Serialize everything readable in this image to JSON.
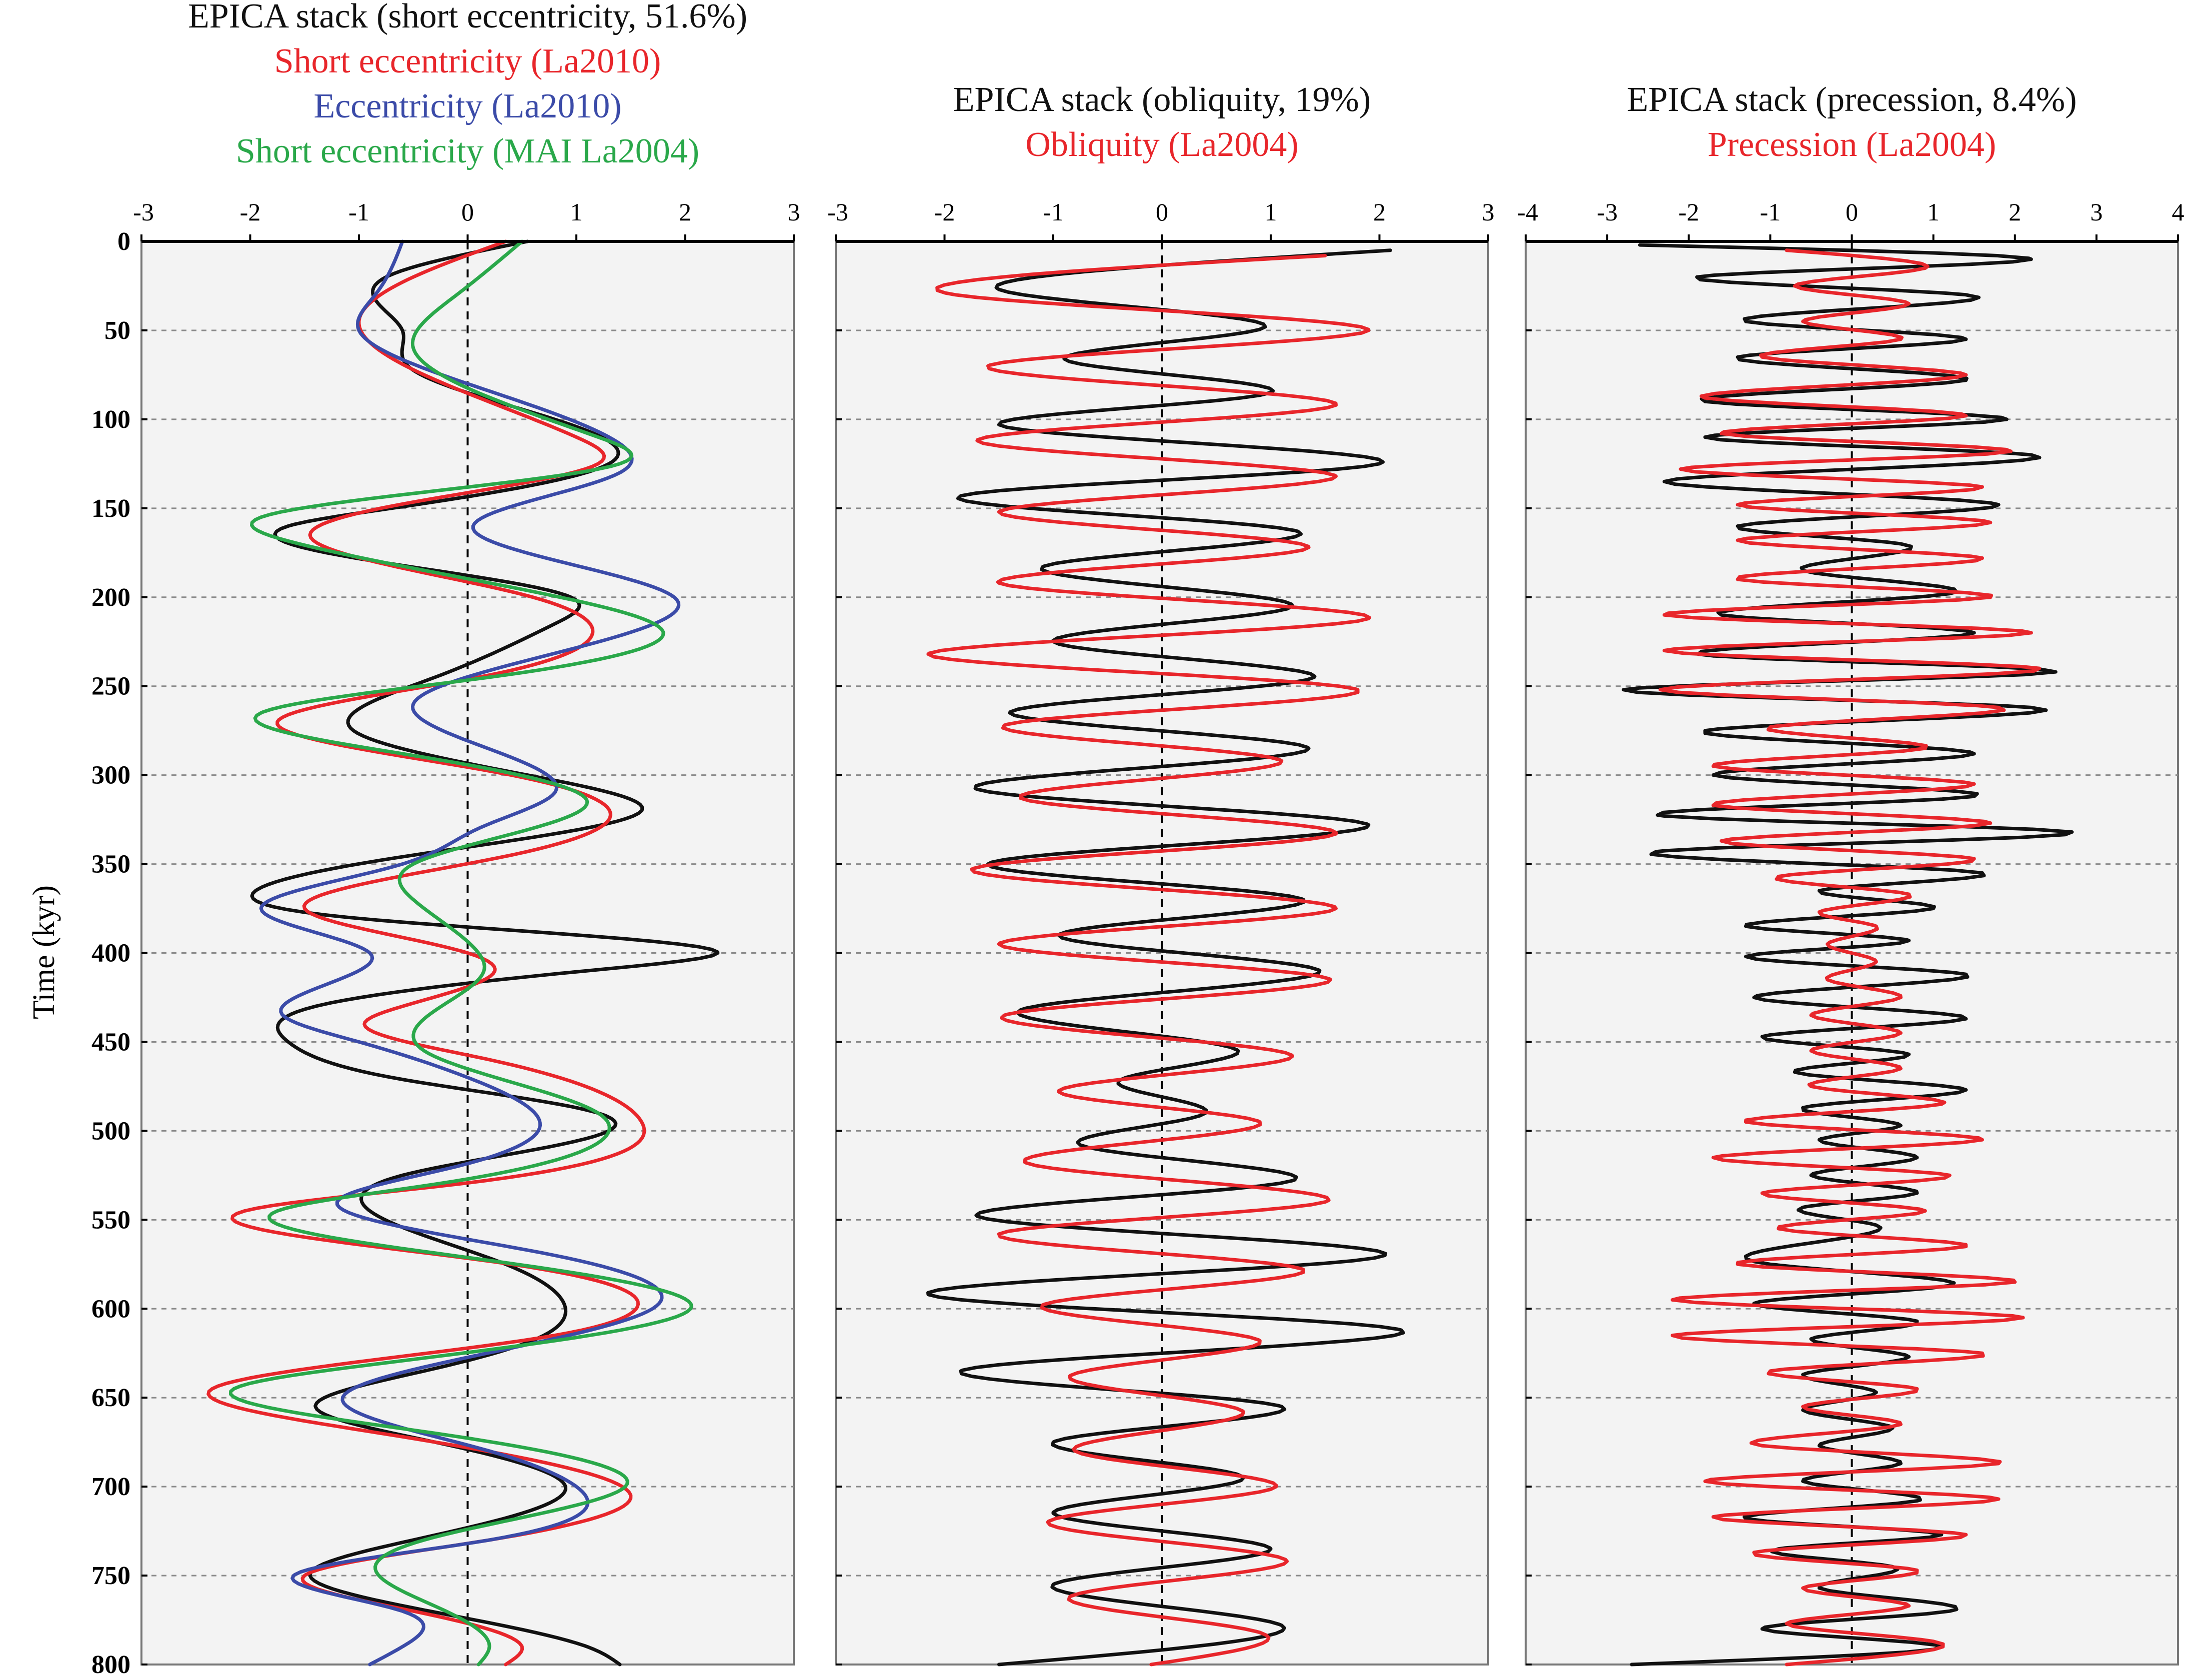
{
  "y_axis_title": "Time (kyr)",
  "colors": {
    "black": "#111111",
    "red": "#e8262b",
    "blue": "#3b4ba8",
    "green": "#2aa84a"
  },
  "chart_data": [
    {
      "type": "line",
      "orientation": "vertical",
      "titles": [
        {
          "text": "EPICA stack (short eccentricity, 51.6%)",
          "color": "#111111"
        },
        {
          "text": "Short eccentricity (La2010)",
          "color": "#e8262b"
        },
        {
          "text": "Eccentricity (La2010)",
          "color": "#3b4ba8"
        },
        {
          "text": "Short eccentricity (MAI La2004)",
          "color": "#2aa84a"
        }
      ],
      "xlim": [
        -3,
        3
      ],
      "xticks": [
        -3,
        -2,
        -1,
        0,
        1,
        2,
        3
      ],
      "ylim": [
        0,
        800
      ],
      "yticks": [
        0,
        50,
        100,
        150,
        200,
        250,
        300,
        350,
        400,
        450,
        500,
        550,
        600,
        650,
        700,
        750,
        800
      ],
      "ylabel": "Time (kyr)",
      "series": [
        {
          "name": "EPICA stack (short eccentricity, 51.6%)",
          "color": "#111111",
          "time": [
            0,
            20,
            50,
            70,
            100,
            125,
            150,
            160,
            175,
            200,
            215,
            245,
            275,
            300,
            320,
            345,
            365,
            380,
            400,
            410,
            430,
            450,
            470,
            490,
            500,
            525,
            545,
            575,
            600,
            615,
            635,
            655,
            675,
            700,
            715,
            730,
            750,
            770,
            790,
            800
          ],
          "values": [
            0.55,
            -0.75,
            -0.6,
            -0.55,
            0.8,
            1.3,
            -0.7,
            -1.65,
            -1.3,
            0.95,
            0.8,
            -0.3,
            -1.05,
            0.55,
            1.6,
            -0.5,
            -1.95,
            -1.1,
            2.3,
            1.1,
            -1.4,
            -1.65,
            -0.7,
            1.2,
            1.3,
            -0.6,
            -0.9,
            0.35,
            0.9,
            0.7,
            -0.4,
            -1.4,
            -0.3,
            0.9,
            0.5,
            -0.5,
            -1.45,
            -0.35,
            1.1,
            1.4
          ]
        },
        {
          "name": "Short eccentricity (La2010)",
          "color": "#e8262b",
          "time": [
            0,
            20,
            45,
            75,
            110,
            125,
            150,
            165,
            200,
            220,
            245,
            270,
            300,
            325,
            345,
            375,
            400,
            410,
            430,
            440,
            460,
            495,
            530,
            545,
            575,
            600,
            615,
            645,
            670,
            705,
            730,
            750,
            770,
            790,
            800
          ],
          "values": [
            0.35,
            -0.5,
            -1.0,
            -0.4,
            1.0,
            1.2,
            -0.8,
            -1.45,
            0.6,
            1.15,
            0.1,
            -1.75,
            0.4,
            1.3,
            0.4,
            -1.5,
            0.0,
            0.25,
            -0.6,
            -0.95,
            0.2,
            1.6,
            -0.1,
            -2.05,
            0.4,
            1.55,
            0.8,
            -2.35,
            -0.8,
            1.5,
            0.2,
            -1.5,
            -0.5,
            0.5,
            0.35
          ]
        },
        {
          "name": "Eccentricity (La2010)",
          "color": "#3b4ba8",
          "time": [
            0,
            30,
            50,
            80,
            110,
            130,
            160,
            200,
            230,
            260,
            290,
            310,
            330,
            350,
            375,
            400,
            435,
            450,
            470,
            500,
            520,
            540,
            570,
            600,
            630,
            650,
            680,
            700,
            730,
            750,
            770,
            790,
            800
          ],
          "values": [
            -0.6,
            -0.85,
            -1.0,
            0.0,
            1.3,
            1.4,
            0.05,
            1.9,
            0.9,
            -0.5,
            0.4,
            0.8,
            0.1,
            -0.6,
            -1.9,
            -0.9,
            -1.7,
            -1.0,
            0.0,
            0.65,
            -0.1,
            -1.2,
            0.8,
            1.7,
            -0.2,
            -1.15,
            0.2,
            1.0,
            0.2,
            -1.6,
            -0.6,
            -0.6,
            -0.9
          ]
        },
        {
          "name": "Short eccentricity (MAI La2004)",
          "color": "#2aa84a",
          "time": [
            0,
            30,
            60,
            110,
            125,
            155,
            170,
            200,
            220,
            245,
            265,
            290,
            315,
            350,
            370,
            400,
            410,
            440,
            455,
            490,
            500,
            530,
            545,
            575,
            600,
            630,
            645,
            670,
            700,
            730,
            745,
            770,
            790,
            800
          ],
          "values": [
            0.5,
            -0.1,
            -0.5,
            1.2,
            1.4,
            -1.9,
            -1.55,
            0.85,
            1.8,
            0.2,
            -1.9,
            -0.4,
            1.1,
            -0.5,
            -0.5,
            0.1,
            0.15,
            -0.45,
            -0.4,
            1.2,
            1.3,
            -0.3,
            -1.75,
            0.45,
            2.05,
            -0.7,
            -2.15,
            -0.3,
            1.45,
            -0.4,
            -0.85,
            -0.2,
            0.2,
            0.1
          ]
        }
      ]
    },
    {
      "type": "line",
      "orientation": "vertical",
      "titles": [
        {
          "text": "EPICA stack (obliquity, 19%)",
          "color": "#111111"
        },
        {
          "text": "Obliquity (La2004)",
          "color": "#e8262b"
        }
      ],
      "xlim": [
        -3,
        3
      ],
      "xticks": [
        -3,
        -2,
        -1,
        0,
        1,
        2,
        3
      ],
      "ylim": [
        0,
        800
      ],
      "yticks": [
        0,
        50,
        100,
        150,
        200,
        250,
        300,
        350,
        400,
        450,
        500,
        550,
        600,
        650,
        700,
        750,
        800
      ],
      "series": [
        {
          "name": "EPICA stack (obliquity, 19%)",
          "color": "#111111",
          "time": [
            5,
            27,
            48,
            66,
            85,
            103,
            125,
            143,
            163,
            183,
            205,
            225,
            245,
            265,
            285,
            308,
            328,
            350,
            370,
            390,
            410,
            432,
            455,
            472,
            490,
            508,
            528,
            548,
            570,
            592,
            612,
            635,
            655,
            675,
            695,
            715,
            735,
            755,
            778,
            800
          ],
          "values": [
            2.1,
            -1.5,
            0.95,
            -0.9,
            1.0,
            -1.5,
            2.0,
            -1.85,
            1.25,
            -1.1,
            1.2,
            -1.0,
            1.4,
            -1.4,
            1.35,
            -1.7,
            1.9,
            -1.6,
            1.3,
            -0.95,
            1.45,
            -1.3,
            0.7,
            -0.4,
            0.4,
            -0.75,
            1.2,
            -1.7,
            2.05,
            -2.15,
            2.2,
            -1.85,
            1.1,
            -1.0,
            0.75,
            -1.0,
            1.0,
            -1.0,
            1.1,
            -1.5
          ]
        },
        {
          "name": "Obliquity (La2004)",
          "color": "#e8262b",
          "time": [
            8,
            30,
            50,
            70,
            92,
            112,
            132,
            152,
            172,
            192,
            212,
            232,
            252,
            272,
            292,
            313,
            333,
            353,
            375,
            395,
            415,
            435,
            458,
            478,
            495,
            518,
            540,
            558,
            578,
            598,
            618,
            638,
            658,
            680,
            700,
            720,
            742,
            762,
            782,
            800
          ],
          "values": [
            1.5,
            -1.9,
            1.9,
            -1.6,
            1.6,
            -1.7,
            1.6,
            -1.5,
            1.35,
            -1.5,
            1.9,
            -2.15,
            1.8,
            -1.45,
            1.1,
            -1.3,
            1.6,
            -1.75,
            1.6,
            -1.5,
            1.55,
            -1.45,
            1.2,
            -0.95,
            0.9,
            -1.25,
            1.5,
            -1.5,
            1.3,
            -1.1,
            0.9,
            -0.85,
            0.75,
            -0.8,
            1.05,
            -1.05,
            1.15,
            -0.85,
            0.9,
            -0.1
          ]
        }
      ]
    },
    {
      "type": "line",
      "orientation": "vertical",
      "titles": [
        {
          "text": "EPICA stack (precession, 8.4%)",
          "color": "#111111"
        },
        {
          "text": "Precession (La2004)",
          "color": "#e8262b"
        }
      ],
      "xlim": [
        -4,
        4
      ],
      "xticks": [
        -4,
        -3,
        -2,
        -1,
        0,
        1,
        2,
        3,
        4
      ],
      "ylim": [
        0,
        800
      ],
      "yticks": [
        0,
        50,
        100,
        150,
        200,
        250,
        300,
        350,
        400,
        450,
        500,
        550,
        600,
        650,
        700,
        750,
        800
      ],
      "series": [
        {
          "name": "EPICA stack (precession, 8.4%)",
          "color": "#111111",
          "time": [
            2,
            10,
            20,
            30,
            45,
            55,
            65,
            78,
            90,
            100,
            110,
            120,
            135,
            148,
            160,
            170,
            185,
            198,
            210,
            220,
            233,
            242,
            252,
            262,
            275,
            288,
            300,
            312,
            323,
            332,
            343,
            355,
            365,
            375,
            385,
            393,
            402,
            412,
            425,
            437,
            447,
            457,
            467,
            477,
            487,
            497,
            505,
            515,
            525,
            535,
            543,
            553,
            563,
            575,
            587,
            597,
            607,
            617,
            627,
            637,
            647,
            657,
            667,
            677,
            687,
            697,
            708,
            718,
            727,
            735,
            745,
            757,
            770,
            780,
            790,
            800
          ],
          "values": [
            -2.6,
            2.2,
            -1.9,
            1.4,
            -1.3,
            1.4,
            -1.4,
            1.4,
            -1.8,
            1.9,
            -1.8,
            2.2,
            -2.3,
            1.8,
            -1.4,
            0.6,
            -0.6,
            1.2,
            -1.6,
            1.5,
            -1.7,
            2.5,
            -2.8,
            2.2,
            -1.8,
            1.5,
            -1.7,
            1.5,
            -2.3,
            2.7,
            -2.4,
            1.6,
            -0.4,
            1.0,
            -1.3,
            0.7,
            -1.3,
            1.4,
            -1.2,
            1.4,
            -1.1,
            0.7,
            -0.7,
            1.4,
            -0.6,
            0.6,
            -0.4,
            0.8,
            -0.5,
            0.8,
            -0.6,
            0.3,
            -0.5,
            -1.0,
            1.2,
            -1.2,
            0.8,
            -0.5,
            0.7,
            -0.6,
            0.3,
            -0.6,
            0.5,
            -0.4,
            0.6,
            -0.6,
            0.8,
            -1.3,
            1.1,
            -0.9,
            0.5,
            -0.4,
            1.2,
            -1.1,
            1.1,
            -2.7
          ]
        },
        {
          "name": "Precession (La2004)",
          "color": "#e8262b",
          "time": [
            5,
            15,
            25,
            35,
            45,
            55,
            65,
            75,
            88,
            98,
            108,
            118,
            128,
            138,
            148,
            158,
            168,
            178,
            190,
            200,
            210,
            220,
            230,
            240,
            252,
            262,
            273,
            285,
            295,
            305,
            317,
            327,
            337,
            347,
            357,
            367,
            377,
            385,
            395,
            405,
            415,
            425,
            435,
            445,
            455,
            465,
            475,
            485,
            495,
            505,
            515,
            525,
            535,
            545,
            555,
            565,
            575,
            585,
            595,
            605,
            615,
            625,
            635,
            645,
            655,
            665,
            677,
            687,
            697,
            707,
            717,
            727,
            737,
            747,
            757,
            767,
            777,
            787,
            800
          ],
          "values": [
            -0.8,
            0.9,
            -0.7,
            0.7,
            -0.6,
            0.6,
            -1.1,
            1.4,
            -1.8,
            1.4,
            -1.6,
            1.95,
            -2.1,
            1.6,
            -1.4,
            1.7,
            -1.4,
            1.6,
            -1.4,
            1.7,
            -2.3,
            2.2,
            -2.3,
            2.3,
            -2.35,
            1.8,
            -1.0,
            0.9,
            -1.7,
            1.5,
            -1.7,
            1.7,
            -1.6,
            1.5,
            -0.9,
            0.7,
            -0.4,
            0.3,
            -0.3,
            0.3,
            -0.3,
            0.6,
            -0.5,
            0.6,
            -0.5,
            0.6,
            -0.5,
            1.1,
            -1.3,
            1.6,
            -1.7,
            1.2,
            -1.1,
            0.9,
            -0.9,
            1.4,
            -1.4,
            2.0,
            -2.2,
            2.1,
            -2.2,
            1.6,
            -1.0,
            0.8,
            -0.6,
            0.6,
            -1.1,
            1.8,
            -1.8,
            1.8,
            -1.7,
            1.4,
            -1.2,
            0.8,
            -0.6,
            0.7,
            -0.8,
            1.0,
            -0.8
          ]
        }
      ]
    }
  ]
}
